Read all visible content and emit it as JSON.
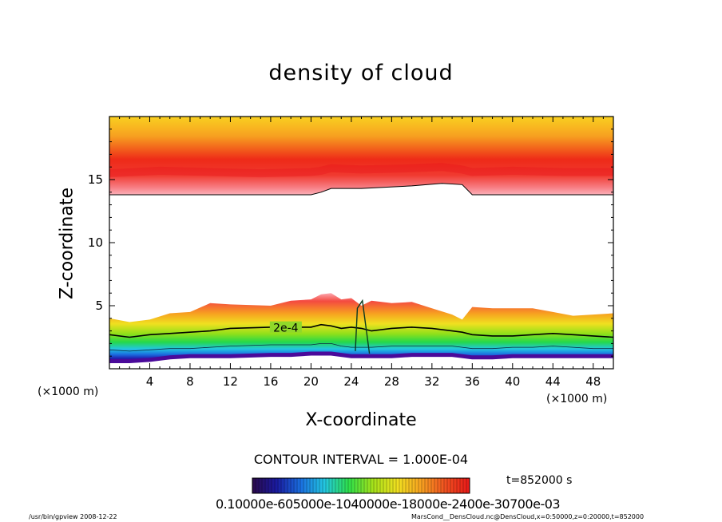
{
  "chart_data": {
    "type": "contour",
    "title": "density of cloud",
    "xlabel": "X-coordinate",
    "ylabel": "Z-coordinate",
    "x_unit": "(×1000 m)",
    "x_ticks": [
      4,
      8,
      12,
      16,
      20,
      24,
      28,
      32,
      36,
      40,
      44,
      48
    ],
    "y_ticks": [
      5,
      10,
      15
    ],
    "xlim": [
      0,
      50
    ],
    "ylim": [
      0,
      20
    ],
    "contour_interval": "CONTOUR INTERVAL = 1.000E-04",
    "contour_label": "2e-4",
    "time": "t=852000 s",
    "colorbar_tick_text": "0.10000e-605000e-1040000e-18000e-2400e-30700e-03",
    "colorbar_colors": [
      "#2b0a4a",
      "#1a1aa0",
      "#1a6fe0",
      "#23c7e0",
      "#2ee04a",
      "#a6e21a",
      "#f0e020",
      "#f7a020",
      "#f05020",
      "#e81818"
    ],
    "upper_layer": {
      "x": [
        0,
        5,
        10,
        15,
        20,
        21,
        22,
        25,
        30,
        33,
        35,
        36,
        40,
        45,
        50
      ],
      "bottom_z": [
        13.8,
        13.8,
        13.8,
        13.8,
        13.8,
        14.0,
        14.3,
        14.3,
        14.5,
        14.7,
        14.6,
        13.8,
        13.8,
        13.8,
        13.8
      ],
      "peak_z": [
        15.5,
        15.7,
        15.6,
        15.5,
        15.6,
        15.7,
        15.9,
        15.8,
        15.9,
        16.0,
        15.8,
        15.6,
        15.7,
        15.6,
        15.6
      ],
      "top_z": 20
    },
    "lower_layer": {
      "x": [
        0,
        2,
        4,
        6,
        8,
        10,
        12,
        16,
        18,
        20,
        21,
        22,
        23,
        24,
        25,
        26,
        28,
        30,
        32,
        34,
        35,
        36,
        38,
        40,
        42,
        44,
        46,
        48,
        50
      ],
      "top_z": [
        4.0,
        3.7,
        3.9,
        4.4,
        4.5,
        5.2,
        5.1,
        5.0,
        5.4,
        5.5,
        5.9,
        6.0,
        5.5,
        5.6,
        5.0,
        5.4,
        5.2,
        5.3,
        4.8,
        4.3,
        3.9,
        4.9,
        4.8,
        4.8,
        4.8,
        4.5,
        4.2,
        4.3,
        4.4
      ],
      "contour_2e4_z": [
        2.7,
        2.5,
        2.7,
        2.8,
        2.9,
        3.0,
        3.2,
        3.3,
        3.3,
        3.3,
        3.5,
        3.4,
        3.2,
        3.3,
        3.2,
        3.0,
        3.2,
        3.3,
        3.2,
        3.0,
        2.9,
        2.7,
        2.6,
        2.6,
        2.7,
        2.8,
        2.7,
        2.6,
        2.5
      ],
      "inner_contour_z": [
        1.5,
        1.4,
        1.5,
        1.6,
        1.6,
        1.7,
        1.8,
        1.9,
        1.9,
        1.9,
        2.0,
        2.0,
        1.8,
        1.7,
        1.7,
        1.7,
        1.8,
        1.8,
        1.8,
        1.8,
        1.7,
        1.6,
        1.6,
        1.7,
        1.7,
        1.8,
        1.7,
        1.6,
        1.6
      ],
      "bottom_z": [
        0.6,
        0.6,
        0.7,
        0.9,
        1.0,
        1.0,
        1.0,
        1.1,
        1.1,
        1.2,
        1.2,
        1.2,
        1.1,
        1.0,
        1.0,
        1.0,
        1.0,
        1.1,
        1.1,
        1.1,
        1.0,
        0.9,
        0.9,
        1.0,
        1.0,
        1.0,
        1.0,
        1.0,
        1.0
      ]
    }
  },
  "footer": {
    "left": "/usr/bin/gpview  2008-12-22",
    "right": "MarsCond__DensCloud.nc@DensCloud,x=0:50000,z=0:20000,t=852000"
  }
}
